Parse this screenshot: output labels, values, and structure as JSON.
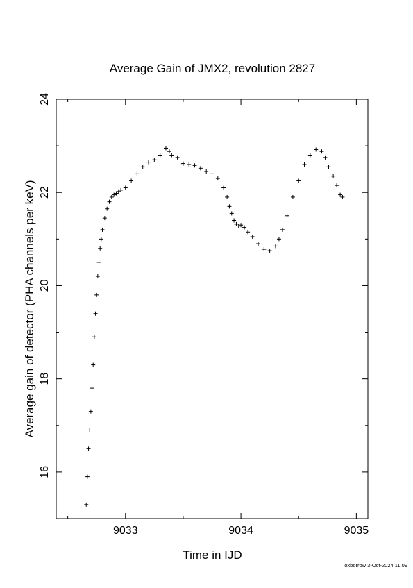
{
  "footer": {
    "credit": "oxborrow  3-Oct-2024 11:09"
  },
  "chart_data": {
    "type": "scatter",
    "title": "Average Gain of JMX2, revolution 2827",
    "xlabel": "Time in IJD",
    "ylabel": "Average gain of detector (PHA channels per keV)",
    "xlim": [
      9032.4,
      9035.1
    ],
    "ylim": [
      15,
      24
    ],
    "x_ticks": [
      9033,
      9034,
      9035
    ],
    "x_tick_labels": [
      "9033",
      "9034",
      "9035"
    ],
    "y_ticks": [
      16,
      18,
      20,
      22,
      24
    ],
    "y_tick_labels": [
      "16",
      "18",
      "20",
      "22",
      "24"
    ],
    "marker": "plus",
    "marker_color": "#000000",
    "grid": false,
    "legend": "none",
    "series": [
      {
        "x": [
          9032.66,
          9032.67,
          9032.68,
          9032.69,
          9032.7,
          9032.71,
          9032.72,
          9032.73,
          9032.74,
          9032.75,
          9032.76,
          9032.77,
          9032.78,
          9032.79,
          9032.8,
          9032.82,
          9032.84,
          9032.86,
          9032.88,
          9032.9,
          9032.92,
          9032.94,
          9032.96,
          9033.0,
          9033.05,
          9033.1,
          9033.15,
          9033.2,
          9033.25,
          9033.3,
          9033.35,
          9033.38,
          9033.4,
          9033.45,
          9033.5,
          9033.55,
          9033.6,
          9033.65,
          9033.7,
          9033.75,
          9033.8,
          9033.85,
          9033.88,
          9033.9,
          9033.92,
          9033.94,
          9033.96,
          9033.98,
          9034.0,
          9034.03,
          9034.06,
          9034.1,
          9034.15,
          9034.2,
          9034.25,
          9034.3,
          9034.33,
          9034.36,
          9034.4,
          9034.45,
          9034.5,
          9034.55,
          9034.6,
          9034.65,
          9034.7,
          9034.73,
          9034.76,
          9034.8,
          9034.83,
          9034.86,
          9034.88
        ],
        "y": [
          15.3,
          15.9,
          16.5,
          16.9,
          17.3,
          17.8,
          18.3,
          18.9,
          19.4,
          19.8,
          20.2,
          20.5,
          20.8,
          21.0,
          21.2,
          21.45,
          21.65,
          21.8,
          21.9,
          21.95,
          21.98,
          22.02,
          22.05,
          22.1,
          22.25,
          22.4,
          22.55,
          22.65,
          22.7,
          22.8,
          22.95,
          22.88,
          22.8,
          22.75,
          22.62,
          22.6,
          22.58,
          22.52,
          22.45,
          22.4,
          22.3,
          22.1,
          21.9,
          21.7,
          21.55,
          21.4,
          21.32,
          21.28,
          21.3,
          21.25,
          21.15,
          21.05,
          20.9,
          20.78,
          20.75,
          20.85,
          21.0,
          21.2,
          21.5,
          21.9,
          22.25,
          22.6,
          22.8,
          22.92,
          22.88,
          22.75,
          22.55,
          22.35,
          22.15,
          21.95,
          21.9
        ]
      }
    ]
  }
}
